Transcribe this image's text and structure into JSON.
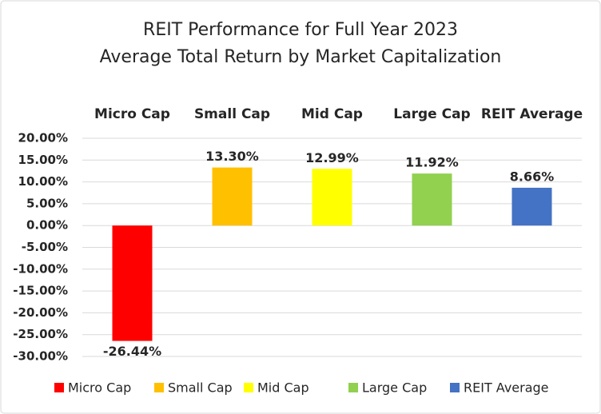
{
  "chart_data": {
    "type": "bar",
    "title": "REIT Performance  for Full Year 2023",
    "subtitle": "Average Total Return by Market Capitalization",
    "categories": [
      "Micro Cap",
      "Small Cap",
      "Mid Cap",
      "Large Cap",
      "REIT Average"
    ],
    "values": [
      -26.44,
      13.3,
      12.99,
      11.92,
      8.66
    ],
    "value_labels": [
      "-26.44%",
      "13.30%",
      "12.99%",
      "11.92%",
      "8.66%"
    ],
    "colors": [
      "#ff0000",
      "#ffc000",
      "#ffff00",
      "#92d050",
      "#4472c4"
    ],
    "ylim": [
      -30,
      20
    ],
    "yticks": [
      {
        "value": -30,
        "label": "-30.00%"
      },
      {
        "value": -25,
        "label": "-25.00%"
      },
      {
        "value": -20,
        "label": "-20.00%"
      },
      {
        "value": -15,
        "label": "-15.00%"
      },
      {
        "value": -10,
        "label": "-10.00%"
      },
      {
        "value": -5,
        "label": "-5.00%"
      },
      {
        "value": 0,
        "label": "0.00%"
      },
      {
        "value": 5,
        "label": "5.00%"
      },
      {
        "value": 10,
        "label": "10.00%"
      },
      {
        "value": 15,
        "label": "15.00%"
      },
      {
        "value": 20,
        "label": "20.00%"
      }
    ],
    "grid": true,
    "legend": "bottom"
  }
}
